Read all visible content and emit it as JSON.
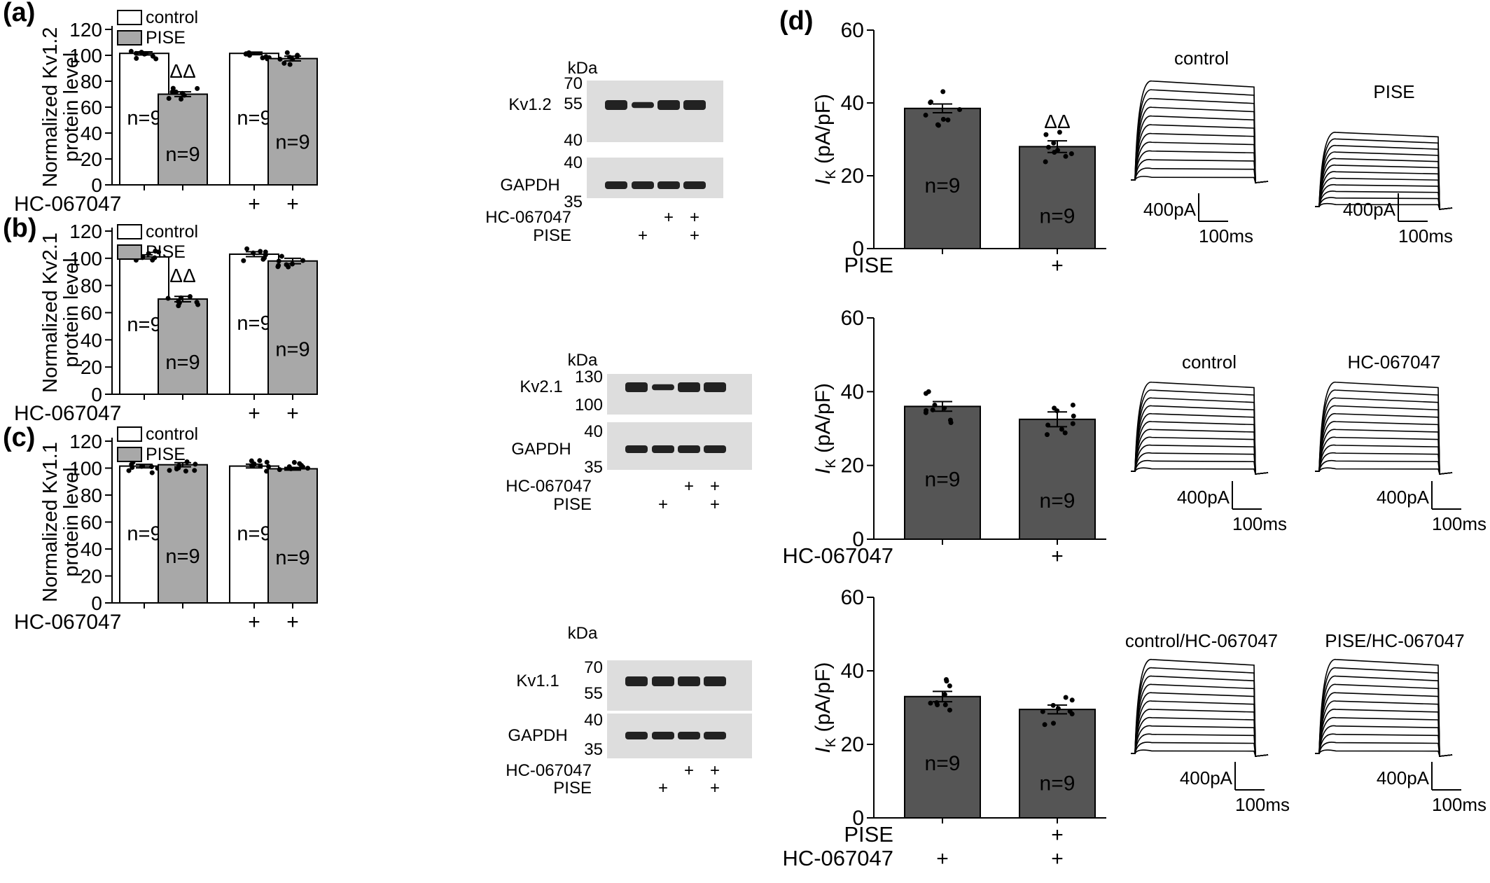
{
  "colors": {
    "control": "#ffffff",
    "pise": "#a8a8a8",
    "dark": "#555555",
    "axis": "#000000",
    "blot_bg": "#dddddd",
    "blot_band": "#222222"
  },
  "panels": {
    "a": {
      "label": "(a)",
      "legend": [
        "control",
        "PISE"
      ],
      "ylabel": [
        "Normalized Kv1.2",
        "protein level"
      ],
      "row_label": "HC-067047",
      "sig": "ΔΔ",
      "blot": {
        "kda": "kDa",
        "top_band": "Kv1.2",
        "top_markers": [
          "70",
          "55",
          "40"
        ],
        "bottom_band": "GAPDH",
        "bottom_markers": [
          "40",
          "35"
        ],
        "row1": "HC-067047",
        "row2": "PISE",
        "plus": "+"
      }
    },
    "b": {
      "label": "(b)",
      "legend": [
        "control",
        "PISE"
      ],
      "ylabel": [
        "Normalized Kv2.1",
        "protein level"
      ],
      "row_label": "HC-067047",
      "sig": "ΔΔ",
      "blot": {
        "kda": "kDa",
        "top_band": "Kv2.1",
        "top_markers": [
          "130",
          "100"
        ],
        "bottom_band": "GAPDH",
        "bottom_markers": [
          "40",
          "35"
        ],
        "row1": "HC-067047",
        "row2": "PISE",
        "plus": "+"
      }
    },
    "c": {
      "label": "(c)",
      "legend": [
        "control",
        "PISE"
      ],
      "ylabel": [
        "Normalized Kv1.1",
        "protein level"
      ],
      "row_label": "HC-067047",
      "blot": {
        "kda": "kDa",
        "top_band": "Kv1.1",
        "top_markers": [
          "70",
          "55"
        ],
        "bottom_band": "GAPDH",
        "bottom_markers": [
          "40",
          "35"
        ],
        "row1": "HC-067047",
        "row2": "PISE",
        "plus": "+"
      }
    },
    "d": {
      "label": "(d)",
      "ylabel_main": "I",
      "ylabel_sub": "K",
      "ylabel_unit": " (pA/pF)",
      "sig": "ΔΔ",
      "rows": [
        {
          "labels": [
            "PISE"
          ],
          "traces": [
            "control",
            "PISE"
          ]
        },
        {
          "labels": [
            "HC-067047"
          ],
          "traces": [
            "control",
            "HC-067047"
          ]
        },
        {
          "labels": [
            "PISE",
            "HC-067047"
          ],
          "traces": [
            "control/HC-067047",
            "PISE/HC-067047"
          ]
        }
      ],
      "scale_current": "400pA",
      "scale_time": "100ms",
      "plus": "+"
    }
  },
  "chart_data": [
    {
      "type": "bar",
      "panel": "a",
      "ylim": [
        0,
        120
      ],
      "yticks": [
        "0",
        "20",
        "40",
        "60",
        "80",
        "100",
        "120"
      ],
      "categories": [
        "control",
        "PISE",
        "control + HC-067047",
        "PISE + HC-067047"
      ],
      "values": [
        101.5,
        70,
        101.5,
        97.5
      ],
      "errors": [
        1.2,
        1.8,
        1.0,
        1.8
      ],
      "n_labels": [
        "n=9",
        "n=9",
        "n=9",
        "n=9"
      ],
      "hc": [
        "",
        "",
        "+",
        "+"
      ]
    },
    {
      "type": "bar",
      "panel": "b",
      "ylim": [
        0,
        120
      ],
      "yticks": [
        "0",
        "20",
        "40",
        "60",
        "80",
        "100",
        "120"
      ],
      "categories": [
        "control",
        "PISE",
        "control + HC-067047",
        "PISE + HC-067047"
      ],
      "values": [
        101,
        70,
        103,
        98
      ],
      "errors": [
        1.5,
        2.0,
        1.8,
        2.0
      ],
      "n_labels": [
        "n=9",
        "n=9",
        "n=9",
        "n=9"
      ],
      "hc": [
        "",
        "",
        "+",
        "+"
      ]
    },
    {
      "type": "bar",
      "panel": "c",
      "ylim": [
        0,
        120
      ],
      "yticks": [
        "0",
        "20",
        "40",
        "60",
        "80",
        "100",
        "120"
      ],
      "categories": [
        "control",
        "PISE",
        "control + HC-067047",
        "PISE + HC-067047"
      ],
      "values": [
        101.5,
        102.5,
        101.5,
        99.5
      ],
      "errors": [
        1.3,
        1.5,
        1.4,
        1.0
      ],
      "n_labels": [
        "n=9",
        "n=9",
        "n=9",
        "n=9"
      ],
      "hc": [
        "",
        "",
        "+",
        "+"
      ]
    },
    {
      "type": "bar",
      "panel": "d1",
      "ylim": [
        0,
        60
      ],
      "yticks": [
        "0",
        "20",
        "40",
        "60"
      ],
      "values": [
        38.5,
        28
      ],
      "errors": [
        1.2,
        1.6
      ],
      "n_labels": [
        "n=9",
        "n=9"
      ],
      "row_plus": [
        [
          "",
          "+"
        ]
      ]
    },
    {
      "type": "bar",
      "panel": "d2",
      "ylim": [
        0,
        60
      ],
      "yticks": [
        "0",
        "20",
        "40",
        "60"
      ],
      "values": [
        36,
        32.5
      ],
      "errors": [
        1.3,
        2.0
      ],
      "n_labels": [
        "n=9",
        "n=9"
      ],
      "row_plus": [
        [
          "",
          "+"
        ]
      ]
    },
    {
      "type": "bar",
      "panel": "d3",
      "ylim": [
        0,
        60
      ],
      "yticks": [
        "0",
        "20",
        "40",
        "60"
      ],
      "values": [
        33,
        29.5
      ],
      "errors": [
        1.4,
        1.2
      ],
      "n_labels": [
        "n=9",
        "n=9"
      ],
      "row_plus": [
        [
          "",
          "+"
        ],
        [
          "+",
          "+"
        ]
      ]
    }
  ]
}
